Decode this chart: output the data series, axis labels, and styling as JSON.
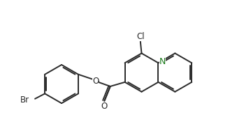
{
  "background_color": "#ffffff",
  "line_color": "#2a2a2a",
  "N_color": "#0000ff",
  "atom_label_color": "#2a2a2a",
  "line_width": 1.4,
  "font_size": 8.5,
  "figsize": [
    3.29,
    1.98
  ],
  "dpi": 100,
  "xlim": [
    0.0,
    9.5
  ],
  "ylim": [
    0.0,
    5.8
  ]
}
